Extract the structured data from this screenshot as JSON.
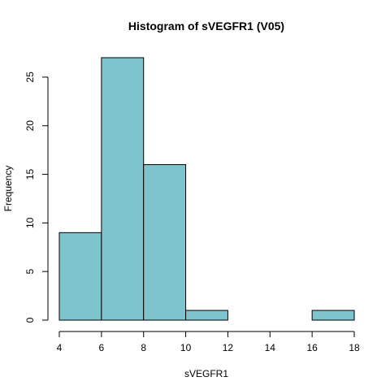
{
  "chart_data": {
    "type": "bar",
    "title": "Histogram of sVEGFR1 (V05)",
    "xlabel": "sVEGFR1",
    "ylabel": "Frequency",
    "bins": [
      {
        "x0": 4,
        "x1": 6,
        "count": 9
      },
      {
        "x0": 6,
        "x1": 8,
        "count": 27
      },
      {
        "x0": 8,
        "x1": 10,
        "count": 16
      },
      {
        "x0": 10,
        "x1": 12,
        "count": 1
      },
      {
        "x0": 12,
        "x1": 14,
        "count": 0
      },
      {
        "x0": 14,
        "x1": 16,
        "count": 0
      },
      {
        "x0": 16,
        "x1": 18,
        "count": 1
      }
    ],
    "xlim": [
      4,
      18
    ],
    "ylim": [
      0,
      27
    ],
    "xticks": [
      4,
      6,
      8,
      10,
      12,
      14,
      16,
      18
    ],
    "yticks": [
      0,
      5,
      10,
      15,
      20,
      25
    ],
    "bar_color": "#7ec4cf",
    "grid": false,
    "legend": "none"
  }
}
